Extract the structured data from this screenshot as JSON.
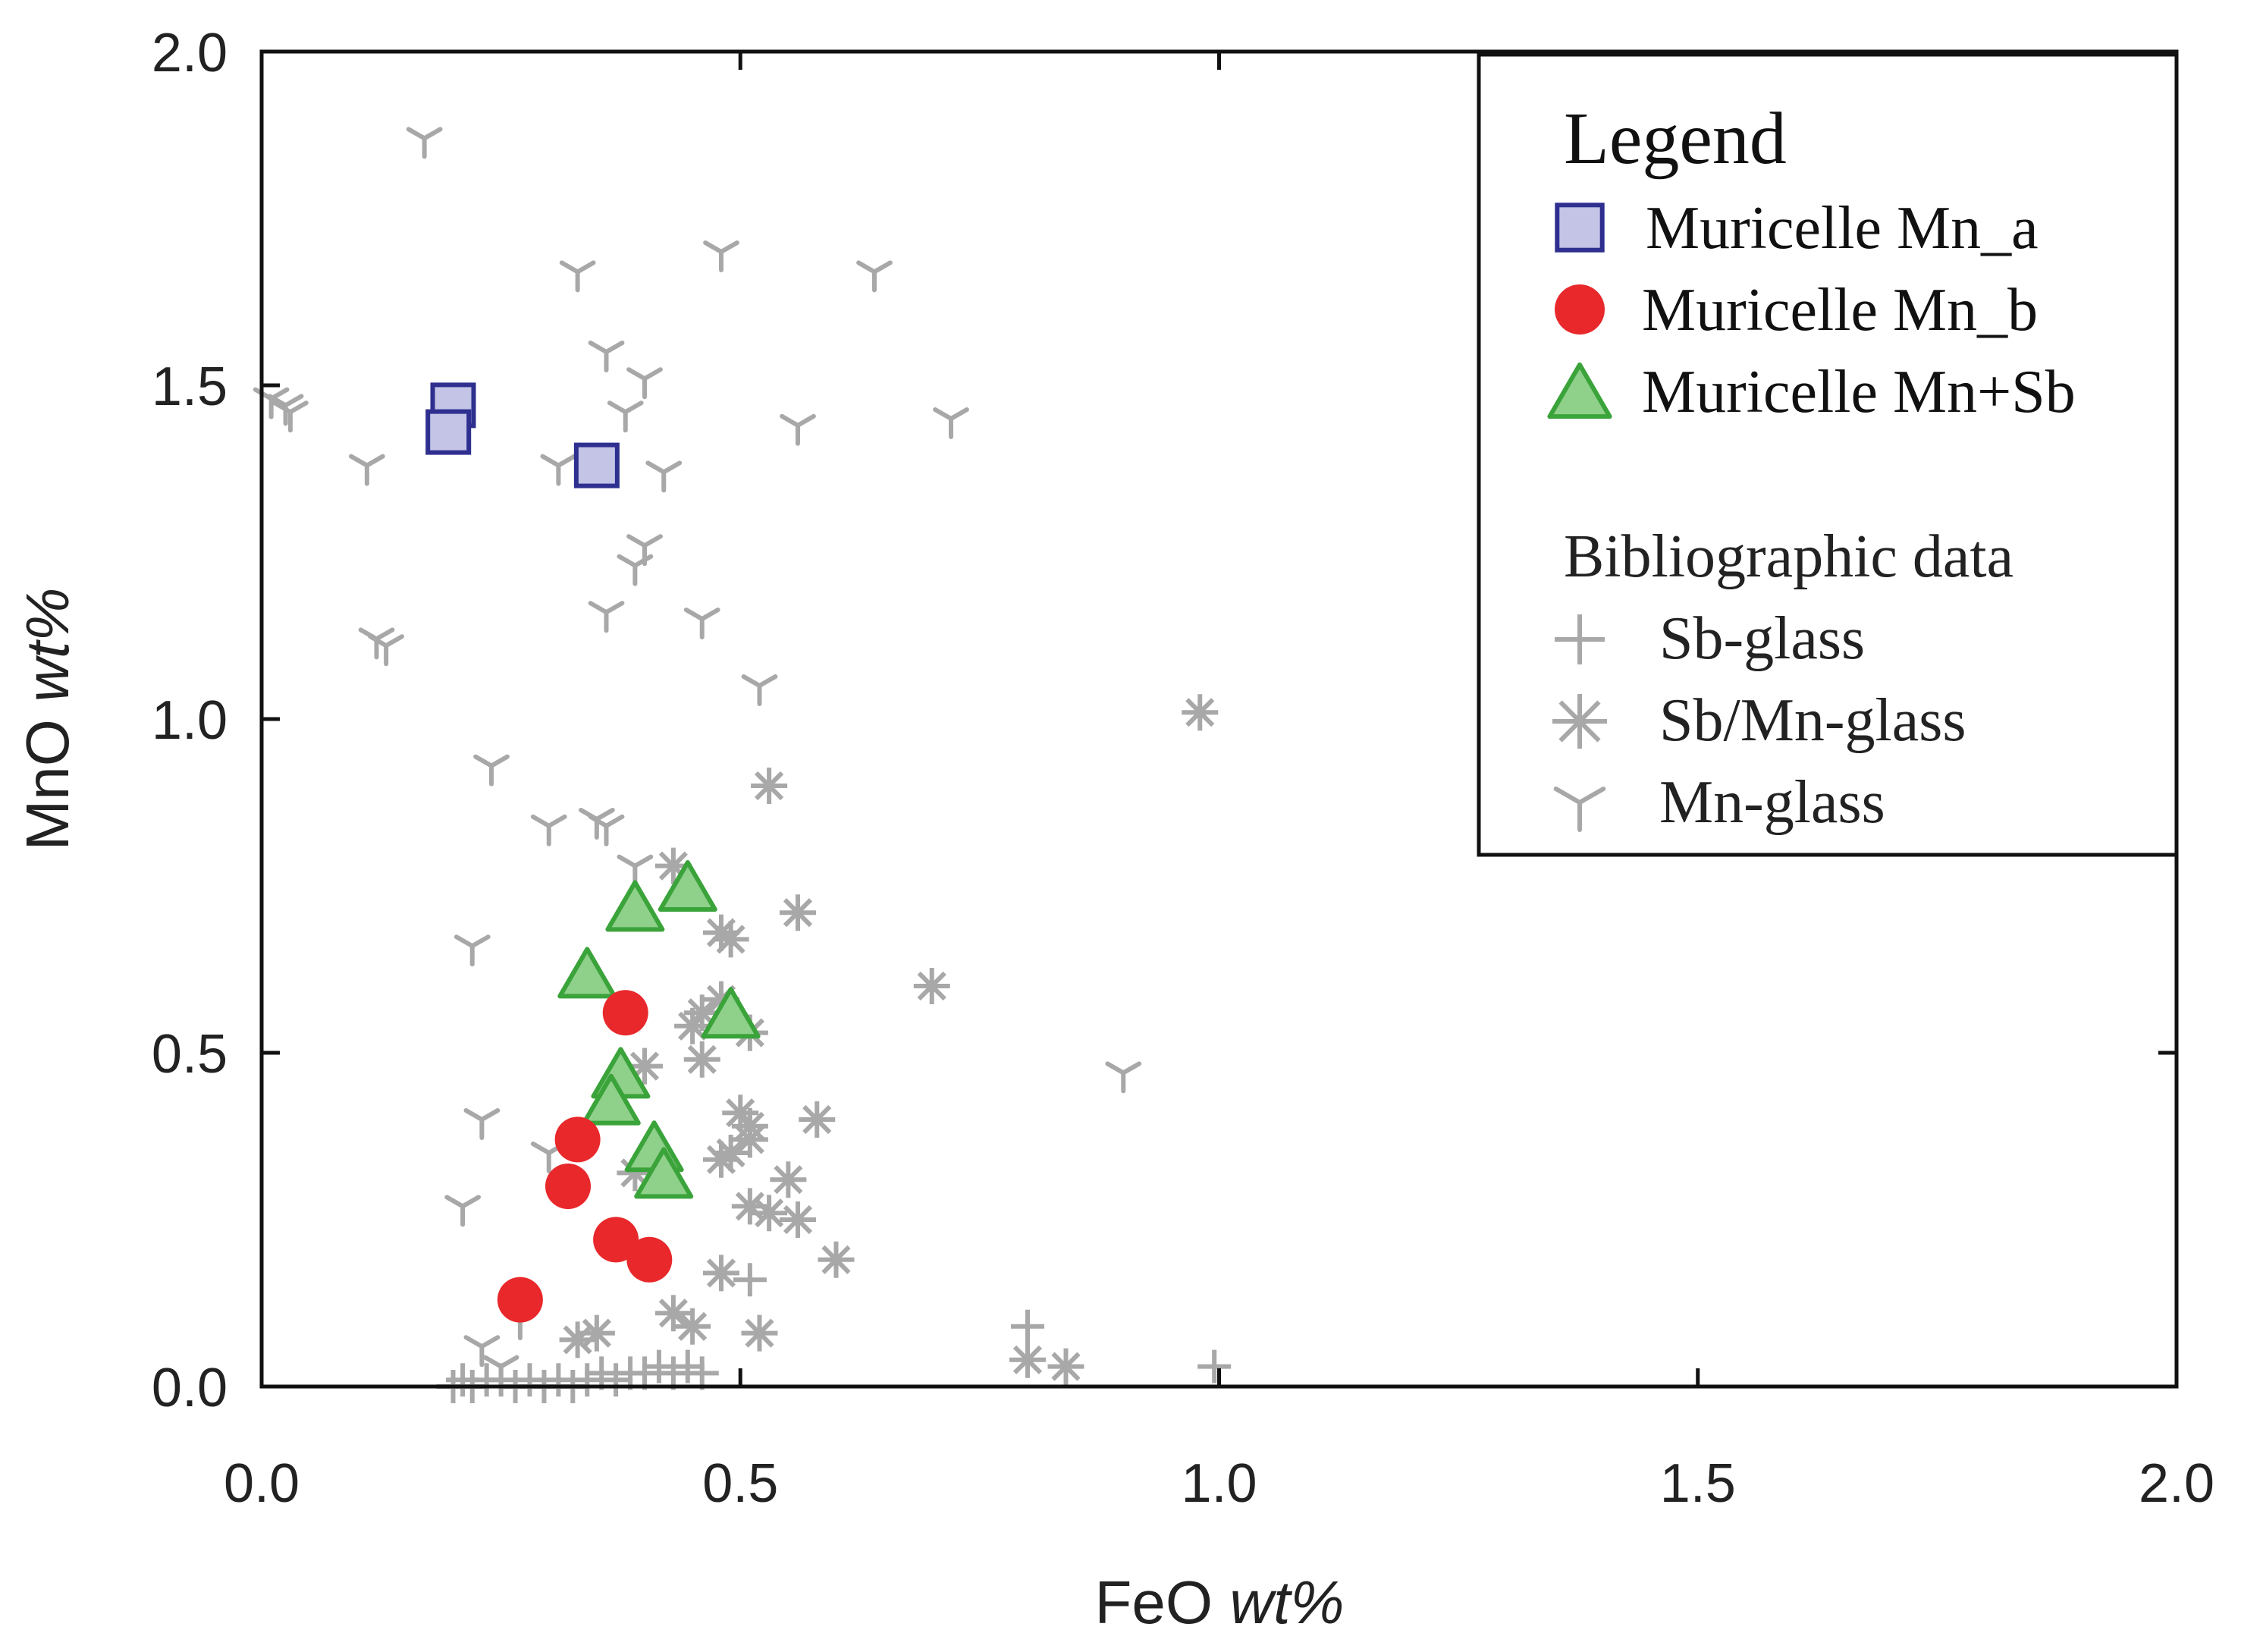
{
  "chart_data": {
    "type": "scatter",
    "xlabel_main": "FeO",
    "xlabel_unit": "wt%",
    "ylabel_main": "MnO",
    "ylabel_unit": "wt%",
    "xlim": [
      0.0,
      2.0
    ],
    "ylim": [
      0.0,
      2.0
    ],
    "x_ticks": [
      "0.0",
      "0.5",
      "1.0",
      "1.5",
      "2.0"
    ],
    "y_ticks": [
      "0.0",
      "0.5",
      "1.0",
      "1.5",
      "2.0"
    ],
    "grid": false,
    "legend": {
      "title": "Legend",
      "placement": "top-right",
      "subheading": "Bibliographic data"
    },
    "colors": {
      "mn_a_fill": "#c3c4e6",
      "mn_a_edge": "#2e2f8f",
      "mn_b": "#e8282b",
      "mnsb_fill": "#8fd08a",
      "mnsb_edge": "#3aa33a",
      "biblio": "#a8a8a8"
    },
    "series": [
      {
        "name": "Muricelle Mn_a",
        "marker": "square",
        "points": [
          [
            0.2,
            1.47
          ],
          [
            0.195,
            1.43
          ],
          [
            0.35,
            1.38
          ]
        ]
      },
      {
        "name": "Muricelle Mn_b",
        "marker": "circle",
        "points": [
          [
            0.38,
            0.56
          ],
          [
            0.33,
            0.37
          ],
          [
            0.32,
            0.3
          ],
          [
            0.37,
            0.22
          ],
          [
            0.405,
            0.19
          ],
          [
            0.27,
            0.13
          ]
        ]
      },
      {
        "name": "Muricelle Mn+Sb",
        "marker": "triangle",
        "points": [
          [
            0.39,
            0.72
          ],
          [
            0.445,
            0.75
          ],
          [
            0.34,
            0.62
          ],
          [
            0.49,
            0.56
          ],
          [
            0.375,
            0.47
          ],
          [
            0.365,
            0.43
          ],
          [
            0.41,
            0.36
          ],
          [
            0.42,
            0.32
          ]
        ]
      },
      {
        "name": "Sb-glass",
        "marker": "plus",
        "points": [
          [
            0.2,
            0.0
          ],
          [
            0.21,
            0.01
          ],
          [
            0.22,
            0.0
          ],
          [
            0.235,
            0.01
          ],
          [
            0.25,
            0.01
          ],
          [
            0.265,
            0.0
          ],
          [
            0.28,
            0.01
          ],
          [
            0.295,
            0.0
          ],
          [
            0.31,
            0.01
          ],
          [
            0.325,
            0.0
          ],
          [
            0.34,
            0.01
          ],
          [
            0.355,
            0.02
          ],
          [
            0.37,
            0.01
          ],
          [
            0.385,
            0.02
          ],
          [
            0.4,
            0.02
          ],
          [
            0.415,
            0.03
          ],
          [
            0.43,
            0.02
          ],
          [
            0.445,
            0.03
          ],
          [
            0.46,
            0.02
          ],
          [
            0.51,
            0.16
          ],
          [
            0.8,
            0.09
          ],
          [
            0.995,
            0.03
          ]
        ]
      },
      {
        "name": "Sb/Mn-glass",
        "marker": "asterisk",
        "points": [
          [
            0.98,
            1.01
          ],
          [
            0.53,
            0.9
          ],
          [
            0.43,
            0.78
          ],
          [
            0.56,
            0.71
          ],
          [
            0.48,
            0.68
          ],
          [
            0.49,
            0.67
          ],
          [
            0.7,
            0.6
          ],
          [
            0.48,
            0.58
          ],
          [
            0.46,
            0.56
          ],
          [
            0.45,
            0.54
          ],
          [
            0.51,
            0.53
          ],
          [
            0.4,
            0.48
          ],
          [
            0.46,
            0.49
          ],
          [
            0.5,
            0.41
          ],
          [
            0.51,
            0.39
          ],
          [
            0.58,
            0.4
          ],
          [
            0.51,
            0.37
          ],
          [
            0.49,
            0.35
          ],
          [
            0.48,
            0.34
          ],
          [
            0.39,
            0.32
          ],
          [
            0.55,
            0.31
          ],
          [
            0.51,
            0.27
          ],
          [
            0.53,
            0.26
          ],
          [
            0.56,
            0.25
          ],
          [
            0.6,
            0.19
          ],
          [
            0.48,
            0.17
          ],
          [
            0.43,
            0.11
          ],
          [
            0.45,
            0.09
          ],
          [
            0.52,
            0.08
          ],
          [
            0.35,
            0.08
          ],
          [
            0.33,
            0.07
          ],
          [
            0.8,
            0.04
          ],
          [
            0.84,
            0.03
          ]
        ]
      },
      {
        "name": "Mn-glass",
        "marker": "tri_down",
        "points": [
          [
            0.17,
            1.87
          ],
          [
            0.48,
            1.7
          ],
          [
            0.33,
            1.67
          ],
          [
            0.64,
            1.67
          ],
          [
            0.36,
            1.55
          ],
          [
            0.4,
            1.51
          ],
          [
            0.38,
            1.46
          ],
          [
            0.56,
            1.44
          ],
          [
            0.72,
            1.45
          ],
          [
            0.01,
            1.48
          ],
          [
            0.025,
            1.47
          ],
          [
            0.03,
            1.46
          ],
          [
            0.11,
            1.38
          ],
          [
            0.31,
            1.38
          ],
          [
            0.42,
            1.37
          ],
          [
            0.4,
            1.26
          ],
          [
            0.39,
            1.23
          ],
          [
            0.36,
            1.16
          ],
          [
            0.46,
            1.15
          ],
          [
            0.12,
            1.12
          ],
          [
            0.13,
            1.11
          ],
          [
            0.52,
            1.05
          ],
          [
            0.24,
            0.93
          ],
          [
            0.3,
            0.84
          ],
          [
            0.35,
            0.85
          ],
          [
            0.36,
            0.84
          ],
          [
            0.39,
            0.78
          ],
          [
            0.22,
            0.66
          ],
          [
            0.9,
            0.47
          ],
          [
            0.23,
            0.4
          ],
          [
            0.3,
            0.35
          ],
          [
            0.21,
            0.27
          ],
          [
            0.27,
            0.1
          ],
          [
            0.23,
            0.06
          ],
          [
            0.25,
            0.03
          ]
        ]
      }
    ]
  }
}
